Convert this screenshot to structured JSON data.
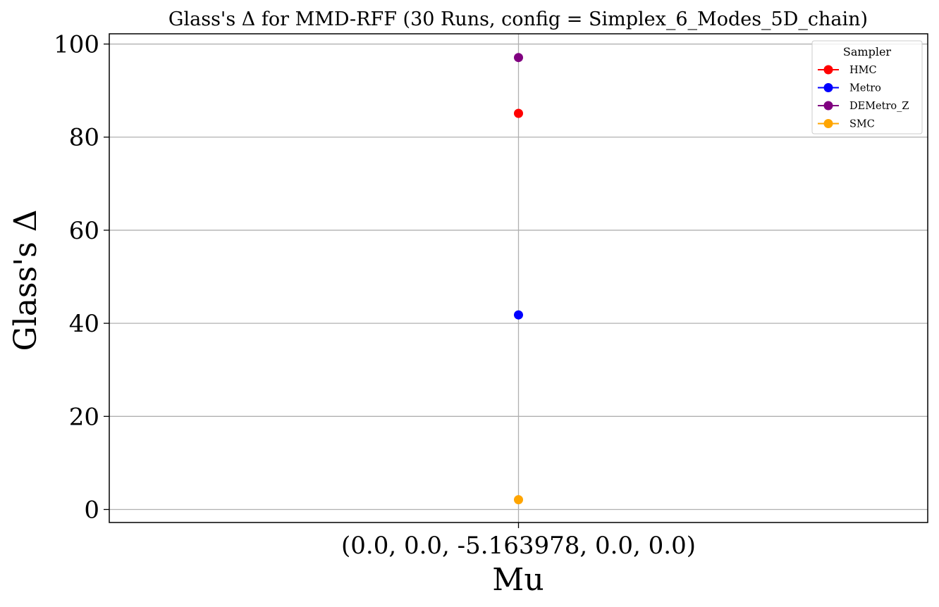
{
  "chart_data": {
    "type": "scatter",
    "title": "Glass's Δ for MMD-RFF (30 Runs, config = Simplex_6_Modes_5D_chain)",
    "xlabel": "Mu",
    "ylabel": "Glass's Δ",
    "categories": [
      "(0.0, 0.0, -5.163978, 0.0, 0.0)"
    ],
    "ylim": [
      -2.8,
      102.2
    ],
    "yticks": [
      0,
      20,
      40,
      60,
      80,
      100
    ],
    "grid": true,
    "legend": {
      "title": "Sampler",
      "placement": "top-right"
    },
    "series": [
      {
        "name": "HMC",
        "color": "#ff0000",
        "values": [
          85.1
        ]
      },
      {
        "name": "Metro",
        "color": "#0000ff",
        "values": [
          41.8
        ]
      },
      {
        "name": "DEMetro_Z",
        "color": "#800080",
        "values": [
          97.1
        ]
      },
      {
        "name": "SMC",
        "color": "#ffa500",
        "values": [
          2.1
        ]
      }
    ]
  }
}
